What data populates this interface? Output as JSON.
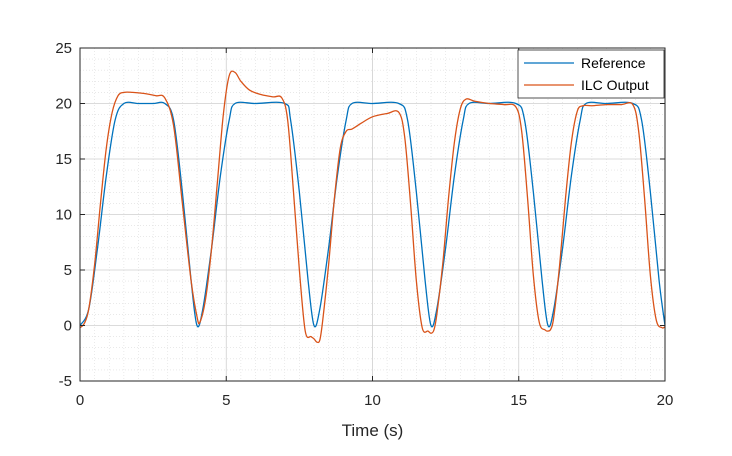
{
  "chart_data": {
    "type": "line",
    "title": "",
    "xlabel": "Time (s)",
    "ylabel": "",
    "xlim": [
      0,
      20
    ],
    "ylim": [
      -5,
      25
    ],
    "xticks": [
      0,
      5,
      10,
      15,
      20
    ],
    "yticks": [
      -5,
      0,
      5,
      10,
      15,
      20,
      25
    ],
    "grid": "major and minor (dotted)",
    "legend_position": "top-right",
    "series": [
      {
        "name": "Reference",
        "color": "#0072BD",
        "x": [
          0,
          0.3,
          0.6,
          0.9,
          1.2,
          1.5,
          2,
          2.5,
          2.9,
          3.2,
          3.5,
          3.8,
          4.0,
          4.2,
          4.5,
          4.8,
          5.1,
          5.3,
          6.0,
          7.0,
          7.2,
          7.5,
          7.8,
          8.0,
          8.2,
          8.5,
          8.8,
          9.1,
          9.3,
          10.0,
          10.9,
          11.2,
          11.5,
          11.8,
          12.0,
          12.2,
          12.5,
          12.8,
          13.1,
          13.3,
          14.0,
          14.9,
          15.2,
          15.5,
          15.8,
          16.0,
          16.2,
          16.5,
          16.8,
          17.1,
          17.3,
          18.0,
          18.9,
          19.2,
          19.5,
          19.8,
          20.0
        ],
        "y": [
          0,
          1.5,
          7,
          13.5,
          18.5,
          20,
          20,
          20,
          20,
          18.5,
          12,
          4,
          0,
          1.5,
          7,
          13.5,
          18.5,
          20,
          20,
          20,
          18.5,
          12,
          4,
          0,
          1.5,
          7,
          13.5,
          18.5,
          20,
          20,
          20,
          18.5,
          12,
          4,
          0,
          1.5,
          7,
          13.5,
          18.5,
          20,
          20,
          20,
          18.5,
          12,
          4,
          0,
          1.5,
          7,
          13.5,
          18.5,
          20,
          20,
          20,
          18.5,
          12,
          4,
          0
        ]
      },
      {
        "name": "ILC Output",
        "color": "#D95319",
        "x": [
          0,
          0.15,
          0.3,
          0.5,
          0.7,
          0.9,
          1.1,
          1.3,
          1.5,
          1.8,
          2.2,
          2.6,
          2.9,
          3.2,
          3.5,
          3.8,
          4.0,
          4.1,
          4.3,
          4.5,
          4.7,
          4.9,
          5.1,
          5.3,
          5.5,
          5.8,
          6.2,
          6.6,
          6.9,
          7.1,
          7.3,
          7.5,
          7.7,
          7.9,
          8.0,
          8.1,
          8.2,
          8.3,
          8.5,
          8.7,
          8.9,
          9.1,
          9.3,
          9.6,
          10.0,
          10.5,
          10.9,
          11.1,
          11.3,
          11.5,
          11.7,
          11.9,
          12.0,
          12.1,
          12.2,
          12.4,
          12.6,
          12.8,
          13.0,
          13.2,
          13.5,
          14.0,
          14.5,
          14.9,
          15.1,
          15.3,
          15.5,
          15.7,
          15.9,
          16.0,
          16.1,
          16.2,
          16.4,
          16.6,
          16.8,
          17.0,
          17.2,
          17.5,
          18.0,
          18.5,
          18.9,
          19.1,
          19.3,
          19.5,
          19.7,
          19.9,
          20.0
        ],
        "y": [
          -0.2,
          0.2,
          1.5,
          5.5,
          11,
          16,
          19.2,
          20.7,
          21.0,
          21.0,
          20.9,
          20.7,
          20.5,
          18,
          11,
          4,
          0.8,
          0.3,
          2.5,
          7,
          13,
          19,
          22.5,
          22.8,
          22.0,
          21.2,
          20.8,
          20.6,
          20.5,
          18.5,
          12,
          5,
          -0.5,
          -1.0,
          -1.2,
          -1.5,
          -1.3,
          0.5,
          5.5,
          11.5,
          16,
          17.5,
          17.7,
          18.2,
          18.8,
          19.1,
          19.2,
          17,
          11,
          4,
          -0.2,
          -0.5,
          -0.7,
          -0.4,
          1.0,
          5.5,
          11.5,
          16.5,
          19.5,
          20.4,
          20.2,
          20.0,
          19.9,
          19.7,
          17.5,
          11.5,
          4.5,
          0.3,
          -0.4,
          -0.5,
          -0.3,
          0.8,
          5.5,
          11.5,
          16.5,
          19.3,
          19.8,
          19.8,
          19.9,
          19.9,
          19.9,
          17.5,
          11.5,
          4.5,
          0.5,
          -0.2,
          -0.1
        ]
      }
    ]
  }
}
